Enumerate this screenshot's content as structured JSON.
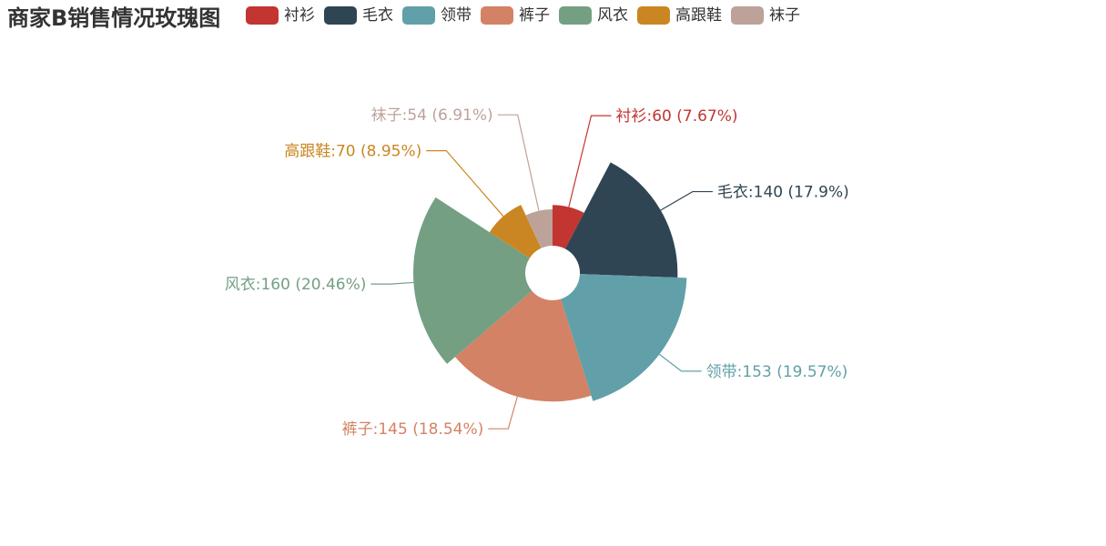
{
  "chart_data": {
    "type": "pie",
    "subtype": "rose",
    "title": "商家B销售情况玫瑰图",
    "categories": [
      "衬衫",
      "毛衣",
      "领带",
      "裤子",
      "风衣",
      "高跟鞋",
      "袜子"
    ],
    "values": [
      60,
      140,
      153,
      145,
      160,
      70,
      54
    ],
    "percents": [
      "7.67%",
      "17.9%",
      "19.57%",
      "18.54%",
      "20.46%",
      "8.95%",
      "6.91%"
    ],
    "labels": [
      "衬衫:60 (7.67%)",
      "毛衣:140 (17.9%)",
      "领带:153 (19.57%)",
      "裤子:145 (18.54%)",
      "风衣:160 (20.46%)",
      "高跟鞋:70 (8.95%)",
      "袜子:54 (6.91%)"
    ],
    "colors": [
      "#c23531",
      "#2f4554",
      "#61a0a8",
      "#d48265",
      "#749f83",
      "#ca8622",
      "#bda29a"
    ],
    "legend_position": "top"
  }
}
